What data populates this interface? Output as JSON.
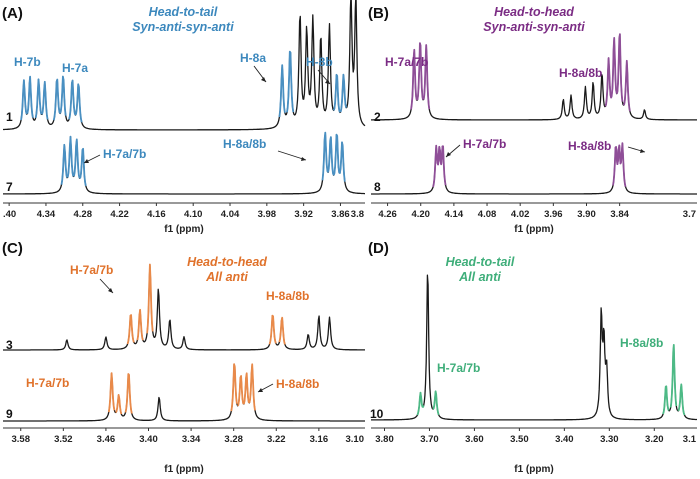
{
  "panels": [
    {
      "id": "A",
      "letter": "(A)",
      "title": [
        "Head-to-tail",
        "Syn-anti-syn-anti"
      ],
      "title_color": "#3c88bd",
      "accent": "#4a90c2",
      "xlabel": "f1 (ppm)",
      "x_range": [
        4.41,
        3.82
      ],
      "ticks": [
        4.4,
        4.34,
        4.28,
        4.22,
        4.16,
        4.1,
        4.04,
        3.98,
        3.92,
        3.86
      ],
      "tick_labels": [
        ".40",
        "4.34",
        "4.28",
        "4.22",
        "4.16",
        "4.10",
        "4.04",
        "3.98",
        "3.92",
        "3.86",
        "3.8"
      ],
      "spectra": [
        {
          "compound": "1",
          "peaks": [
            {
              "ppm": 4.376,
              "h": 0.42,
              "c": "a"
            },
            {
              "ppm": 4.366,
              "h": 0.45,
              "c": "a"
            },
            {
              "ppm": 4.352,
              "h": 0.42,
              "c": "a"
            },
            {
              "ppm": 4.342,
              "h": 0.4,
              "c": "a"
            },
            {
              "ppm": 4.322,
              "h": 0.44,
              "c": "a"
            },
            {
              "ppm": 4.312,
              "h": 0.46,
              "c": "a"
            },
            {
              "ppm": 4.297,
              "h": 0.43,
              "c": "a"
            },
            {
              "ppm": 4.287,
              "h": 0.4,
              "c": "a"
            },
            {
              "ppm": 3.955,
              "h": 0.55,
              "c": "a"
            },
            {
              "ppm": 3.942,
              "h": 0.7,
              "c": "a"
            },
            {
              "ppm": 3.926,
              "h": 1.0,
              "c": "k"
            },
            {
              "ppm": 3.915,
              "h": 0.85,
              "c": "k"
            },
            {
              "ppm": 3.905,
              "h": 0.95,
              "c": "k"
            },
            {
              "ppm": 3.892,
              "h": 0.8,
              "c": "k"
            },
            {
              "ppm": 3.878,
              "h": 0.9,
              "c": "k"
            },
            {
              "ppm": 3.866,
              "h": 0.45,
              "c": "a"
            },
            {
              "ppm": 3.855,
              "h": 0.42,
              "c": "a"
            },
            {
              "ppm": 3.843,
              "h": 1.15,
              "c": "k"
            },
            {
              "ppm": 3.835,
              "h": 1.15,
              "c": "k"
            }
          ]
        },
        {
          "compound": "7",
          "peaks": [
            {
              "ppm": 4.31,
              "h": 0.75,
              "c": "a"
            },
            {
              "ppm": 4.3,
              "h": 0.85,
              "c": "a"
            },
            {
              "ppm": 4.29,
              "h": 0.82,
              "c": "a"
            },
            {
              "ppm": 4.28,
              "h": 0.72,
              "c": "a"
            },
            {
              "ppm": 3.885,
              "h": 0.95,
              "c": "a"
            },
            {
              "ppm": 3.876,
              "h": 0.85,
              "c": "a"
            },
            {
              "ppm": 3.866,
              "h": 0.92,
              "c": "a"
            },
            {
              "ppm": 3.857,
              "h": 0.8,
              "c": "a"
            }
          ]
        }
      ],
      "annotations": [
        "H-7b",
        "H-7a",
        "H-8a",
        "H-8b",
        "H-7a/7b",
        "H-8a/8b"
      ]
    },
    {
      "id": "B",
      "letter": "(B)",
      "title": [
        "Head-to-head",
        "Syn-anti-syn-anti"
      ],
      "title_color": "#7b2c84",
      "accent": "#8f4f98",
      "xlabel": "f1 (ppm)",
      "x_range": [
        4.29,
        3.7
      ],
      "ticks": [
        4.26,
        4.2,
        4.14,
        4.08,
        4.02,
        3.96,
        3.9,
        3.84
      ],
      "tick_labels": [
        "4.26",
        "4.20",
        "4.14",
        "4.08",
        "4.02",
        "3.96",
        "3.90",
        "3.84",
        "3.7"
      ],
      "spectra": [
        {
          "compound": "2",
          "peaks": [
            {
              "ppm": 4.212,
              "h": 0.85,
              "c": "a"
            },
            {
              "ppm": 4.201,
              "h": 0.95,
              "c": "a"
            },
            {
              "ppm": 4.19,
              "h": 0.9,
              "c": "a"
            },
            {
              "ppm": 3.942,
              "h": 0.25,
              "c": "k"
            },
            {
              "ppm": 3.928,
              "h": 0.3,
              "c": "k"
            },
            {
              "ppm": 3.902,
              "h": 0.4,
              "c": "k"
            },
            {
              "ppm": 3.888,
              "h": 0.45,
              "c": "k"
            },
            {
              "ppm": 3.872,
              "h": 0.55,
              "c": "k"
            },
            {
              "ppm": 3.86,
              "h": 0.7,
              "c": "a"
            },
            {
              "ppm": 3.85,
              "h": 0.95,
              "c": "a"
            },
            {
              "ppm": 3.84,
              "h": 1.05,
              "c": "a"
            },
            {
              "ppm": 3.827,
              "h": 0.7,
              "c": "a"
            },
            {
              "ppm": 3.795,
              "h": 0.12,
              "c": "k"
            }
          ]
        },
        {
          "compound": "8",
          "peaks": [
            {
              "ppm": 4.172,
              "h": 0.78,
              "c": "a"
            },
            {
              "ppm": 4.166,
              "h": 0.7,
              "c": "a"
            },
            {
              "ppm": 4.16,
              "h": 0.82,
              "c": "a"
            },
            {
              "ppm": 3.847,
              "h": 0.8,
              "c": "a"
            },
            {
              "ppm": 3.841,
              "h": 0.72,
              "c": "a"
            },
            {
              "ppm": 3.835,
              "h": 0.82,
              "c": "a"
            }
          ]
        }
      ],
      "annotations": [
        "H-7a/7b",
        "H-8a/8b",
        "H-7a/7b",
        "H-8a/8b"
      ]
    },
    {
      "id": "C",
      "letter": "(C)",
      "title": [
        "Head-to-head",
        "All anti"
      ],
      "title_color": "#e0722b",
      "accent": "#e98a4a",
      "xlabel": "f1 (ppm)",
      "x_range": [
        3.605,
        3.095
      ],
      "ticks": [
        3.58,
        3.52,
        3.46,
        3.4,
        3.34,
        3.28,
        3.22,
        3.16
      ],
      "tick_labels": [
        "3.58",
        "3.52",
        "3.46",
        "3.40",
        "3.34",
        "3.28",
        "3.22",
        "3.16",
        "3.10"
      ],
      "spectra": [
        {
          "compound": "3",
          "peaks": [
            {
              "ppm": 3.515,
              "h": 0.12,
              "c": "k"
            },
            {
              "ppm": 3.46,
              "h": 0.15,
              "c": "k"
            },
            {
              "ppm": 3.425,
              "h": 0.42,
              "c": "a"
            },
            {
              "ppm": 3.412,
              "h": 0.45,
              "c": "a"
            },
            {
              "ppm": 3.398,
              "h": 0.98,
              "c": "a"
            },
            {
              "ppm": 3.386,
              "h": 0.7,
              "c": "k"
            },
            {
              "ppm": 3.37,
              "h": 0.35,
              "c": "k"
            },
            {
              "ppm": 3.35,
              "h": 0.15,
              "c": "k"
            },
            {
              "ppm": 3.225,
              "h": 0.42,
              "c": "a"
            },
            {
              "ppm": 3.212,
              "h": 0.38,
              "c": "a"
            },
            {
              "ppm": 3.175,
              "h": 0.18,
              "c": "k"
            },
            {
              "ppm": 3.16,
              "h": 0.4,
              "c": "k"
            },
            {
              "ppm": 3.145,
              "h": 0.38,
              "c": "k"
            }
          ]
        },
        {
          "compound": "9",
          "peaks": [
            {
              "ppm": 3.452,
              "h": 0.78,
              "c": "a"
            },
            {
              "ppm": 3.442,
              "h": 0.4,
              "c": "a"
            },
            {
              "ppm": 3.428,
              "h": 0.82,
              "c": "a"
            },
            {
              "ppm": 3.385,
              "h": 0.4,
              "c": "k"
            },
            {
              "ppm": 3.279,
              "h": 0.95,
              "c": "a"
            },
            {
              "ppm": 3.27,
              "h": 0.7,
              "c": "a"
            },
            {
              "ppm": 3.262,
              "h": 0.72,
              "c": "a"
            },
            {
              "ppm": 3.254,
              "h": 0.9,
              "c": "a"
            }
          ]
        }
      ],
      "annotations": [
        "H-7a/7b",
        "H-8a/8b",
        "H-7a/7b",
        "H-8a/8b"
      ]
    },
    {
      "id": "D",
      "letter": "(D)",
      "title": [
        "Head-to-tail",
        "All anti"
      ],
      "title_color": "#3fae7a",
      "accent": "#4dba86",
      "xlabel": "f1 (ppm)",
      "x_range": [
        3.83,
        3.105
      ],
      "ticks": [
        3.8,
        3.7,
        3.6,
        3.5,
        3.4,
        3.3,
        3.2
      ],
      "tick_labels": [
        "3.80",
        "3.70",
        "3.60",
        "3.50",
        "3.40",
        "3.30",
        "3.20",
        "3.1"
      ],
      "spectra": [
        {
          "compound": "10",
          "peaks": [
            {
              "ppm": 3.72,
              "h": 0.18,
              "c": "a"
            },
            {
              "ppm": 3.704,
              "h": 1.15,
              "c": "k"
            },
            {
              "ppm": 3.686,
              "h": 0.2,
              "c": "a"
            },
            {
              "ppm": 3.318,
              "h": 0.78,
              "c": "k"
            },
            {
              "ppm": 3.312,
              "h": 0.55,
              "c": "k"
            },
            {
              "ppm": 3.306,
              "h": 0.35,
              "c": "k"
            },
            {
              "ppm": 3.174,
              "h": 0.26,
              "c": "a"
            },
            {
              "ppm": 3.157,
              "h": 0.58,
              "c": "a"
            },
            {
              "ppm": 3.14,
              "h": 0.26,
              "c": "a"
            }
          ]
        }
      ],
      "annotations": [
        "H-7a/7b",
        "H-8a/8b"
      ]
    }
  ],
  "chart_data": [
    {
      "type": "line",
      "panel": "(A)",
      "title": "Head-to-tail Syn-anti-syn-anti",
      "xlabel": "f1 (ppm)",
      "ylabel": "",
      "xlim": [
        4.41,
        3.82
      ],
      "series": [
        {
          "name": "1",
          "x": [
            4.376,
            4.366,
            4.352,
            4.342,
            4.322,
            4.312,
            4.297,
            4.287,
            3.955,
            3.942,
            3.926,
            3.915,
            3.905,
            3.892,
            3.878,
            3.866,
            3.855,
            3.843,
            3.835
          ],
          "y": [
            0.42,
            0.45,
            0.42,
            0.4,
            0.44,
            0.46,
            0.43,
            0.4,
            0.55,
            0.7,
            1.0,
            0.85,
            0.95,
            0.8,
            0.9,
            0.45,
            0.42,
            1.15,
            1.15
          ]
        },
        {
          "name": "7",
          "x": [
            4.31,
            4.3,
            4.29,
            4.28,
            3.885,
            3.876,
            3.866,
            3.857
          ],
          "y": [
            0.75,
            0.85,
            0.82,
            0.72,
            0.95,
            0.85,
            0.92,
            0.8
          ]
        }
      ]
    },
    {
      "type": "line",
      "panel": "(B)",
      "title": "Head-to-head Syn-anti-syn-anti",
      "xlabel": "f1 (ppm)",
      "ylabel": "",
      "xlim": [
        4.29,
        3.7
      ],
      "series": [
        {
          "name": "2",
          "x": [
            4.212,
            4.201,
            4.19,
            3.942,
            3.928,
            3.902,
            3.888,
            3.872,
            3.86,
            3.85,
            3.84,
            3.827,
            3.795
          ],
          "y": [
            0.85,
            0.95,
            0.9,
            0.25,
            0.3,
            0.4,
            0.45,
            0.55,
            0.7,
            0.95,
            1.05,
            0.7,
            0.12
          ]
        },
        {
          "name": "8",
          "x": [
            4.172,
            4.166,
            4.16,
            3.847,
            3.841,
            3.835
          ],
          "y": [
            0.78,
            0.7,
            0.82,
            0.8,
            0.72,
            0.82
          ]
        }
      ]
    },
    {
      "type": "line",
      "panel": "(C)",
      "title": "Head-to-head All anti",
      "xlabel": "f1 (ppm)",
      "ylabel": "",
      "xlim": [
        3.605,
        3.095
      ],
      "series": [
        {
          "name": "3",
          "x": [
            3.515,
            3.46,
            3.425,
            3.412,
            3.398,
            3.386,
            3.37,
            3.35,
            3.225,
            3.212,
            3.175,
            3.16,
            3.145
          ],
          "y": [
            0.12,
            0.15,
            0.42,
            0.45,
            0.98,
            0.7,
            0.35,
            0.15,
            0.42,
            0.38,
            0.18,
            0.4,
            0.38
          ]
        },
        {
          "name": "9",
          "x": [
            3.452,
            3.442,
            3.428,
            3.385,
            3.279,
            3.27,
            3.262,
            3.254
          ],
          "y": [
            0.78,
            0.4,
            0.82,
            0.4,
            0.95,
            0.7,
            0.72,
            0.9
          ]
        }
      ]
    },
    {
      "type": "line",
      "panel": "(D)",
      "title": "Head-to-tail All anti",
      "xlabel": "f1 (ppm)",
      "ylabel": "",
      "xlim": [
        3.83,
        3.105
      ],
      "series": [
        {
          "name": "10",
          "x": [
            3.72,
            3.704,
            3.686,
            3.318,
            3.312,
            3.306,
            3.174,
            3.157,
            3.14
          ],
          "y": [
            0.18,
            1.15,
            0.2,
            0.78,
            0.55,
            0.35,
            0.26,
            0.58,
            0.26
          ]
        }
      ]
    }
  ]
}
